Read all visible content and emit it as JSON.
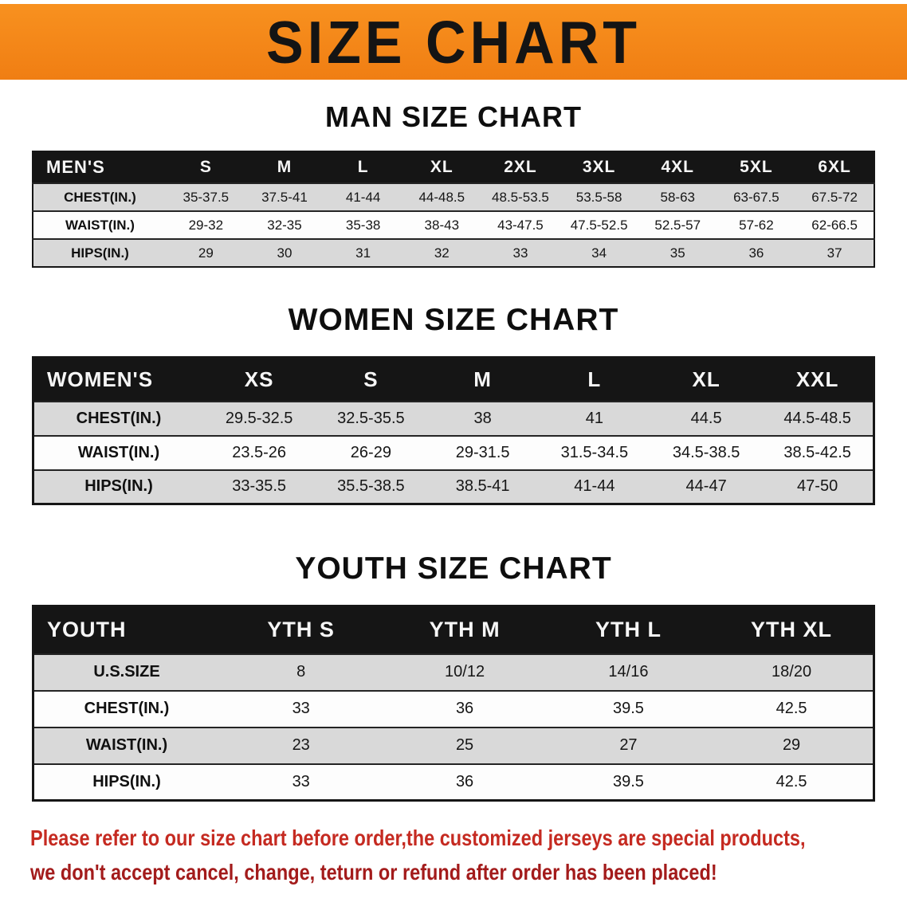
{
  "banner": {
    "title": "SIZE CHART"
  },
  "colors": {
    "banner-orange": "#f07e13",
    "banner-orange-light": "#f8911f",
    "header-bar": "#151515",
    "row-shade": "#d9d9d9",
    "footer-red-1": "#c52a21",
    "footer-red-2": "#a31b1b"
  },
  "sections": [
    {
      "heading": "MAN SIZE CHART",
      "table": {
        "header": [
          "MEN'S",
          "S",
          "M",
          "L",
          "XL",
          "2XL",
          "3XL",
          "4XL",
          "5XL",
          "6XL"
        ],
        "rows": [
          {
            "label": "CHEST(IN.)",
            "values": [
              "35-37.5",
              "37.5-41",
              "41-44",
              "44-48.5",
              "48.5-53.5",
              "53.5-58",
              "58-63",
              "63-67.5",
              "67.5-72"
            ]
          },
          {
            "label": "WAIST(IN.)",
            "values": [
              "29-32",
              "32-35",
              "35-38",
              "38-43",
              "43-47.5",
              "47.5-52.5",
              "52.5-57",
              "57-62",
              "62-66.5"
            ]
          },
          {
            "label": "HIPS(IN.)",
            "values": [
              "29",
              "30",
              "31",
              "32",
              "33",
              "34",
              "35",
              "36",
              "37"
            ]
          }
        ]
      }
    },
    {
      "heading": "WOMEN SIZE CHART",
      "table": {
        "header": [
          "WOMEN'S",
          "XS",
          "S",
          "M",
          "L",
          "XL",
          "XXL"
        ],
        "rows": [
          {
            "label": "CHEST(IN.)",
            "values": [
              "29.5-32.5",
              "32.5-35.5",
              "38",
              "41",
              "44.5",
              "44.5-48.5"
            ]
          },
          {
            "label": "WAIST(IN.)",
            "values": [
              "23.5-26",
              "26-29",
              "29-31.5",
              "31.5-34.5",
              "34.5-38.5",
              "38.5-42.5"
            ]
          },
          {
            "label": "HIPS(IN.)",
            "values": [
              "33-35.5",
              "35.5-38.5",
              "38.5-41",
              "41-44",
              "44-47",
              "47-50"
            ]
          }
        ]
      }
    },
    {
      "heading": "YOUTH SIZE CHART",
      "table": {
        "header": [
          "YOUTH",
          "YTH S",
          "YTH M",
          "YTH L",
          "YTH XL"
        ],
        "rows": [
          {
            "label": "U.S.SIZE",
            "values": [
              "8",
              "10/12",
              "14/16",
              "18/20"
            ]
          },
          {
            "label": "CHEST(IN.)",
            "values": [
              "33",
              "36",
              "39.5",
              "42.5"
            ]
          },
          {
            "label": "WAIST(IN.)",
            "values": [
              "23",
              "25",
              "27",
              "29"
            ]
          },
          {
            "label": "HIPS(IN.)",
            "values": [
              "33",
              "36",
              "39.5",
              "42.5"
            ]
          }
        ]
      }
    }
  ],
  "footer": {
    "line1": "Please refer to our size chart before order,the customized jerseys are special products,",
    "line2": "we don't accept cancel, change, teturn or refund after order has been placed!"
  }
}
